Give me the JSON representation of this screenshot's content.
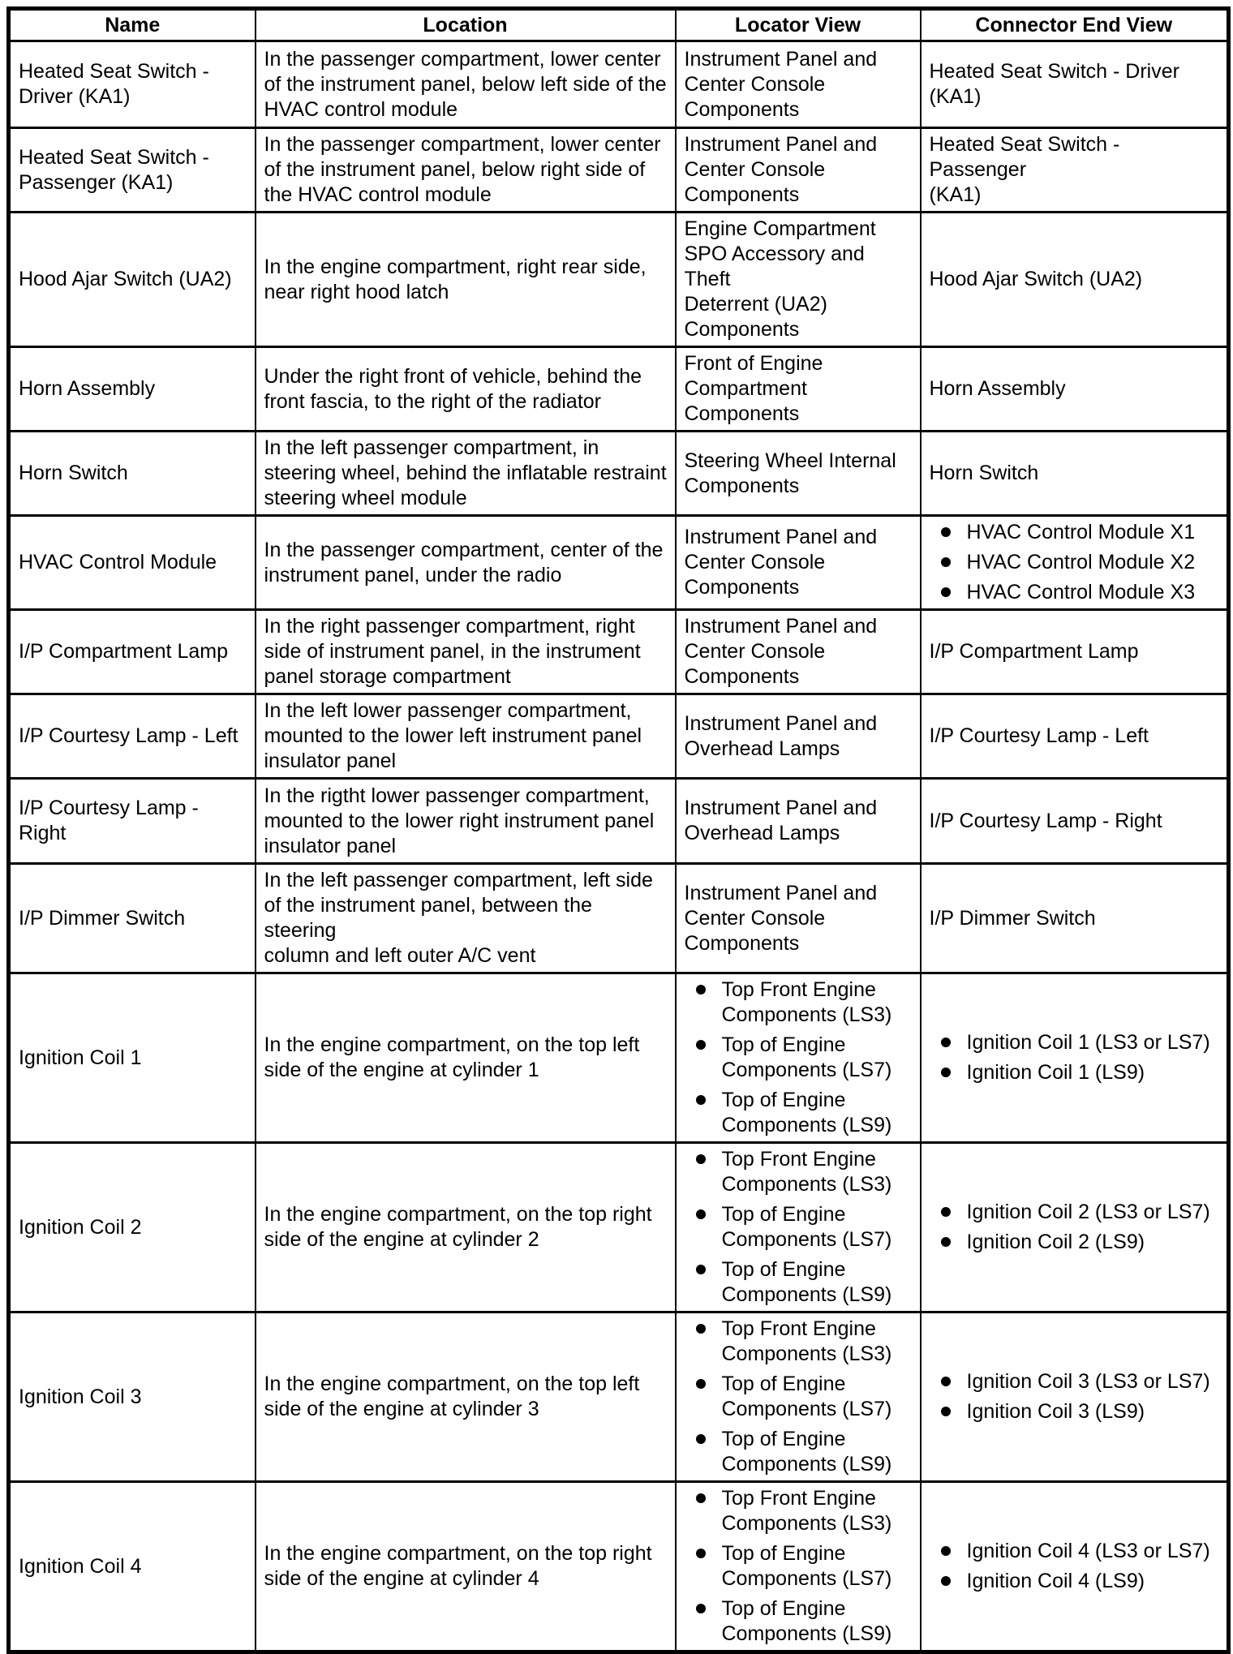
{
  "table": {
    "columns": [
      "Name",
      "Location",
      "Locator View",
      "Connector End View"
    ],
    "rows": [
      {
        "name": "Heated Seat Switch -\nDriver (KA1)",
        "location": "In the passenger compartment, lower center\nof the instrument panel, below left side of the\nHVAC control module",
        "locator": "Instrument Panel and\nCenter Console\nComponents",
        "connector": "Heated Seat Switch - Driver\n(KA1)"
      },
      {
        "name": "Heated Seat Switch -\nPassenger (KA1)",
        "location": "In the passenger compartment, lower center\nof the instrument panel, below right side of\nthe HVAC control module",
        "locator": "Instrument Panel and\nCenter Console\nComponents",
        "connector": "Heated Seat Switch - Passenger\n(KA1)"
      },
      {
        "name": "Hood Ajar Switch (UA2)",
        "location": "In the engine compartment, right rear side,\nnear right hood latch",
        "locator": "Engine Compartment\nSPO Accessory and Theft\nDeterrent (UA2)\nComponents",
        "connector": "Hood Ajar Switch (UA2)"
      },
      {
        "name": "Horn Assembly",
        "location": "Under the right front of vehicle, behind the\nfront fascia, to the right of the radiator",
        "locator": "Front of Engine\nCompartment\nComponents",
        "connector": "Horn Assembly"
      },
      {
        "name": "Horn Switch",
        "location": "In the left passenger compartment, in\nsteering wheel, behind the inflatable restraint\nsteering wheel module",
        "locator": "Steering Wheel Internal\nComponents",
        "connector": "Horn Switch"
      },
      {
        "name": "HVAC Control Module",
        "location": "In the passenger compartment, center of the\ninstrument panel, under the radio",
        "locator": "Instrument Panel and\nCenter Console\nComponents",
        "connector": {
          "bullets": [
            "HVAC Control Module X1",
            "HVAC Control Module X2",
            "HVAC Control Module X3"
          ]
        }
      },
      {
        "name": "I/P Compartment Lamp",
        "location": "In the right passenger compartment, right\nside of instrument panel, in the instrument\npanel storage compartment",
        "locator": "Instrument Panel and\nCenter Console\nComponents",
        "connector": "I/P Compartment Lamp"
      },
      {
        "name": "I/P Courtesy Lamp - Left",
        "location": "In the left lower passenger compartment,\nmounted to the lower left instrument panel\ninsulator panel",
        "locator": "Instrument Panel and\nOverhead Lamps",
        "connector": "I/P Courtesy Lamp - Left"
      },
      {
        "name": "I/P Courtesy Lamp - Right",
        "location": "In the rigtht lower passenger compartment,\nmounted to the lower right instrument panel\ninsulator panel",
        "locator": "Instrument Panel and\nOverhead Lamps",
        "connector": "I/P Courtesy Lamp - Right"
      },
      {
        "name": "I/P Dimmer Switch",
        "location": "In the left passenger compartment, left side\nof the instrument panel, between the steering\ncolumn and left outer A/C vent",
        "locator": "Instrument Panel and\nCenter Console\nComponents",
        "connector": "I/P Dimmer Switch"
      },
      {
        "name": "Ignition Coil 1",
        "location": "In the engine compartment, on the top left\nside of the engine at cylinder 1",
        "locator": {
          "bullets": [
            "Top Front Engine\nComponents (LS3)",
            "Top of Engine\nComponents (LS7)",
            "Top of Engine\nComponents (LS9)"
          ]
        },
        "connector": {
          "bullets": [
            "Ignition Coil 1 (LS3 or LS7)",
            "Ignition Coil 1 (LS9)"
          ]
        }
      },
      {
        "name": "Ignition Coil 2",
        "location": "In the engine compartment, on the top right\nside of the engine at cylinder 2",
        "locator": {
          "bullets": [
            "Top Front Engine\nComponents (LS3)",
            "Top of Engine\nComponents (LS7)",
            "Top of Engine\nComponents (LS9)"
          ]
        },
        "connector": {
          "bullets": [
            "Ignition Coil 2 (LS3 or LS7)",
            "Ignition Coil 2 (LS9)"
          ]
        }
      },
      {
        "name": "Ignition Coil 3",
        "location": "In the engine compartment, on the top left\nside of the engine at cylinder 3",
        "locator": {
          "bullets": [
            "Top Front Engine\nComponents (LS3)",
            "Top of Engine\nComponents (LS7)",
            "Top of Engine\nComponents (LS9)"
          ]
        },
        "connector": {
          "bullets": [
            "Ignition Coil 3 (LS3 or LS7)",
            "Ignition Coil 3 (LS9)"
          ]
        }
      },
      {
        "name": "Ignition Coil 4",
        "location": "In the engine compartment, on the top right\nside of the engine at cylinder 4",
        "locator": {
          "bullets": [
            "Top Front Engine\nComponents (LS3)",
            "Top of Engine\nComponents (LS7)",
            "Top of Engine\nComponents (LS9)"
          ]
        },
        "connector": {
          "bullets": [
            "Ignition Coil 4 (LS3 or LS7)",
            "Ignition Coil 4 (LS9)"
          ]
        }
      }
    ]
  }
}
